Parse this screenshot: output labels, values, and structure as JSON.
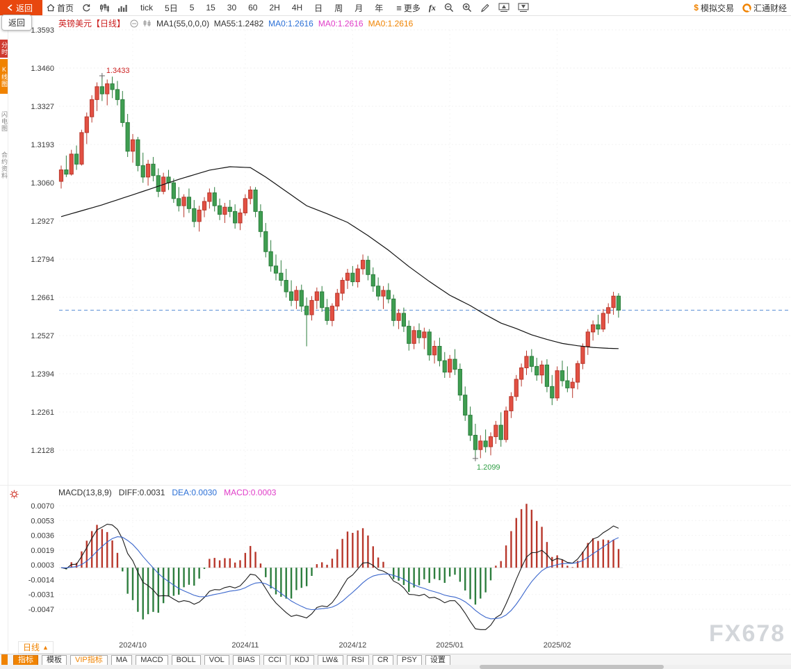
{
  "toolbar": {
    "back_label": "返回",
    "home_label": "首页",
    "periods": [
      "tick",
      "5日",
      "5",
      "15",
      "30",
      "60",
      "2H",
      "4H",
      "日",
      "周",
      "月",
      "年"
    ],
    "more_label": "更多",
    "fx_label": "fx",
    "sim_trading_prefix": "$",
    "sim_trading_label": "模拟交易",
    "brand_label": "汇通财经"
  },
  "back_tooltip": "返回",
  "rail": {
    "items": [
      "分时",
      "K线图",
      "闪电图",
      "合约资料"
    ]
  },
  "header": {
    "symbol": "英镑美元",
    "period_tag": "【日线】",
    "ma_label": "MA1(55,0,0,0)",
    "ma55": "MA55:1.2482",
    "ma_blue": "MA0:1.2616",
    "ma_magenta": "MA0:1.2616",
    "ma_orange": "MA0:1.2616"
  },
  "macd_header": {
    "title": "MACD(13,8,9)",
    "diff": "DIFF:0.0031",
    "dea": "DEA:0.0030",
    "macd": "MACD:0.0003"
  },
  "period_indicator": {
    "label": "日线",
    "arrow": "▲"
  },
  "bottom_tabs": [
    {
      "label": "指标",
      "state": "active"
    },
    {
      "label": "模板",
      "state": ""
    },
    {
      "label": "VIP指标",
      "state": "vip"
    },
    {
      "label": "MA",
      "state": ""
    },
    {
      "label": "MACD",
      "state": ""
    },
    {
      "label": "BOLL",
      "state": ""
    },
    {
      "label": "VOL",
      "state": ""
    },
    {
      "label": "BIAS",
      "state": ""
    },
    {
      "label": "CCI",
      "state": ""
    },
    {
      "label": "KDJ",
      "state": ""
    },
    {
      "label": "LW&",
      "state": ""
    },
    {
      "label": "RSI",
      "state": ""
    },
    {
      "label": "CR",
      "state": ""
    },
    {
      "label": "PSY",
      "state": ""
    },
    {
      "label": "设置",
      "state": ""
    }
  ],
  "watermark": "FX678",
  "colors": {
    "up": "#e25043",
    "up_stroke": "#b8372b",
    "down": "#3f9e51",
    "down_stroke": "#2c7d3d",
    "ma55_line": "#111111",
    "diff_line": "#1a1a1a",
    "dea_line": "#3a66cc",
    "dashed_price_line": "#5b8fd6",
    "accent": "#f08300",
    "high_label": "#cc2222",
    "low_label": "#2f9e44"
  },
  "chart_data": {
    "type": "candlestick+macd",
    "title": "英镑美元 日线 (GBP/USD daily)",
    "price_panel": {
      "y_tick_labels": [
        "1.3593",
        "1.3460",
        "1.3327",
        "1.3193",
        "1.3060",
        "1.2927",
        "1.2794",
        "1.2661",
        "1.2527",
        "1.2394",
        "1.2261",
        "1.2128"
      ],
      "y_range": [
        1.2128,
        1.3593
      ],
      "current_price": 1.2616,
      "high_annotation": {
        "index": 8,
        "price": 1.3433,
        "label": "1.3433"
      },
      "low_annotation": {
        "index": 81,
        "price": 1.2099,
        "label": "1.2099"
      },
      "ma55_anchors": [
        [
          0,
          1.2942
        ],
        [
          8,
          1.2983
        ],
        [
          15,
          1.3024
        ],
        [
          23,
          1.3072
        ],
        [
          29,
          1.3104
        ],
        [
          33,
          1.3116
        ],
        [
          37,
          1.3113
        ],
        [
          40,
          1.308
        ],
        [
          44,
          1.303
        ],
        [
          48,
          1.298
        ],
        [
          52,
          1.2952
        ],
        [
          56,
          1.2922
        ],
        [
          60,
          1.2876
        ],
        [
          64,
          1.2825
        ],
        [
          68,
          1.2768
        ],
        [
          72,
          1.2716
        ],
        [
          76,
          1.2668
        ],
        [
          80,
          1.2632
        ],
        [
          83,
          1.26
        ],
        [
          86,
          1.2571
        ],
        [
          89,
          1.2552
        ],
        [
          92,
          1.253
        ],
        [
          95,
          1.2514
        ],
        [
          98,
          1.25
        ],
        [
          101,
          1.2492
        ],
        [
          104,
          1.2486
        ],
        [
          107,
          1.2483
        ],
        [
          109,
          1.2482
        ]
      ],
      "candles": [
        [
          1.3065,
          1.312,
          1.304,
          1.3105
        ],
        [
          1.3105,
          1.3155,
          1.308,
          1.309
        ],
        [
          1.309,
          1.3175,
          1.3085,
          1.316
        ],
        [
          1.316,
          1.319,
          1.3105,
          1.3125
        ],
        [
          1.3125,
          1.3245,
          1.312,
          1.3235
        ],
        [
          1.3235,
          1.3305,
          1.3195,
          1.329
        ],
        [
          1.329,
          1.3365,
          1.327,
          1.335
        ],
        [
          1.335,
          1.341,
          1.331,
          1.3395
        ],
        [
          1.3395,
          1.3433,
          1.3345,
          1.337
        ],
        [
          1.337,
          1.342,
          1.333,
          1.3405
        ],
        [
          1.3405,
          1.343,
          1.3355,
          1.3385
        ],
        [
          1.3385,
          1.3415,
          1.333,
          1.335
        ],
        [
          1.335,
          1.338,
          1.3255,
          1.327
        ],
        [
          1.327,
          1.33,
          1.315,
          1.317
        ],
        [
          1.317,
          1.323,
          1.313,
          1.321
        ],
        [
          1.321,
          1.322,
          1.31,
          1.312
        ],
        [
          1.312,
          1.3165,
          1.306,
          1.308
        ],
        [
          1.308,
          1.314,
          1.305,
          1.3125
        ],
        [
          1.3125,
          1.315,
          1.3065,
          1.3085
        ],
        [
          1.3085,
          1.311,
          1.301,
          1.303
        ],
        [
          1.303,
          1.3095,
          1.302,
          1.308
        ],
        [
          1.308,
          1.3105,
          1.3035,
          1.306
        ],
        [
          1.306,
          1.3075,
          1.299,
          1.3005
        ],
        [
          1.3005,
          1.3045,
          1.296,
          1.298
        ],
        [
          1.298,
          1.302,
          1.294,
          1.301
        ],
        [
          1.301,
          1.304,
          1.2955,
          1.297
        ],
        [
          1.297,
          1.3,
          1.2905,
          1.2925
        ],
        [
          1.2925,
          1.298,
          1.289,
          1.2965
        ],
        [
          1.2965,
          1.301,
          1.294,
          1.2995
        ],
        [
          1.2995,
          1.304,
          1.297,
          1.3025
        ],
        [
          1.3025,
          1.3045,
          1.296,
          1.298
        ],
        [
          1.298,
          1.3005,
          1.293,
          1.295
        ],
        [
          1.295,
          1.299,
          1.292,
          1.2975
        ],
        [
          1.2975,
          1.3,
          1.294,
          1.296
        ],
        [
          1.296,
          1.2985,
          1.29,
          1.292
        ],
        [
          1.292,
          1.297,
          1.2895,
          1.2955
        ],
        [
          1.2955,
          1.302,
          1.2945,
          1.3005
        ],
        [
          1.3005,
          1.3048,
          1.2985,
          1.3035
        ],
        [
          1.3035,
          1.3045,
          1.294,
          1.296
        ],
        [
          1.296,
          1.2985,
          1.287,
          1.289
        ],
        [
          1.289,
          1.292,
          1.28,
          1.282
        ],
        [
          1.282,
          1.286,
          1.275,
          1.277
        ],
        [
          1.277,
          1.281,
          1.272,
          1.2745
        ],
        [
          1.2745,
          1.279,
          1.27,
          1.272
        ],
        [
          1.272,
          1.276,
          1.266,
          1.268
        ],
        [
          1.268,
          1.272,
          1.263,
          1.265
        ],
        [
          1.265,
          1.27,
          1.262,
          1.2685
        ],
        [
          1.2685,
          1.2705,
          1.261,
          1.263
        ],
        [
          1.263,
          1.266,
          1.249,
          1.26
        ],
        [
          1.26,
          1.2665,
          1.258,
          1.265
        ],
        [
          1.265,
          1.2695,
          1.262,
          1.268
        ],
        [
          1.268,
          1.27,
          1.261,
          1.2625
        ],
        [
          1.2625,
          1.2655,
          1.2565,
          1.258
        ],
        [
          1.258,
          1.264,
          1.256,
          1.263
        ],
        [
          1.263,
          1.269,
          1.2615,
          1.2675
        ],
        [
          1.2675,
          1.273,
          1.265,
          1.272
        ],
        [
          1.272,
          1.276,
          1.269,
          1.2745
        ],
        [
          1.2745,
          1.277,
          1.27,
          1.2715
        ],
        [
          1.2715,
          1.2775,
          1.2695,
          1.276
        ],
        [
          1.276,
          1.281,
          1.274,
          1.279
        ],
        [
          1.279,
          1.2805,
          1.272,
          1.274
        ],
        [
          1.274,
          1.2765,
          1.268,
          1.27
        ],
        [
          1.27,
          1.273,
          1.265,
          1.2665
        ],
        [
          1.2665,
          1.27,
          1.262,
          1.2685
        ],
        [
          1.2685,
          1.271,
          1.264,
          1.2655
        ],
        [
          1.2655,
          1.267,
          1.256,
          1.258
        ],
        [
          1.258,
          1.262,
          1.255,
          1.2605
        ],
        [
          1.2605,
          1.2625,
          1.254,
          1.256
        ],
        [
          1.256,
          1.258,
          1.2475,
          1.25
        ],
        [
          1.25,
          1.256,
          1.248,
          1.2545
        ],
        [
          1.2545,
          1.257,
          1.25,
          1.252
        ],
        [
          1.252,
          1.2555,
          1.248,
          1.254
        ],
        [
          1.254,
          1.255,
          1.244,
          1.246
        ],
        [
          1.246,
          1.251,
          1.243,
          1.249
        ],
        [
          1.249,
          1.252,
          1.242,
          1.244
        ],
        [
          1.244,
          1.247,
          1.238,
          1.24
        ],
        [
          1.24,
          1.246,
          1.238,
          1.2445
        ],
        [
          1.2445,
          1.248,
          1.239,
          1.241
        ],
        [
          1.241,
          1.243,
          1.23,
          1.232
        ],
        [
          1.232,
          1.235,
          1.223,
          1.225
        ],
        [
          1.225,
          1.228,
          1.216,
          1.218
        ],
        [
          1.218,
          1.222,
          1.2099,
          1.213
        ],
        [
          1.213,
          1.218,
          1.21,
          1.216
        ],
        [
          1.216,
          1.22,
          1.212,
          1.214
        ],
        [
          1.214,
          1.219,
          1.211,
          1.2175
        ],
        [
          1.2175,
          1.223,
          1.215,
          1.2215
        ],
        [
          1.2215,
          1.226,
          1.214,
          1.2165
        ],
        [
          1.2165,
          1.228,
          1.2155,
          1.2265
        ],
        [
          1.2265,
          1.233,
          1.224,
          1.2315
        ],
        [
          1.2315,
          1.239,
          1.23,
          1.2375
        ],
        [
          1.2375,
          1.243,
          1.235,
          1.2415
        ],
        [
          1.2415,
          1.2475,
          1.239,
          1.2455
        ],
        [
          1.2455,
          1.248,
          1.24,
          1.242
        ],
        [
          1.242,
          1.245,
          1.237,
          1.239
        ],
        [
          1.239,
          1.244,
          1.236,
          1.2425
        ],
        [
          1.2425,
          1.2445,
          1.233,
          1.235
        ],
        [
          1.235,
          1.239,
          1.2285,
          1.231
        ],
        [
          1.231,
          1.242,
          1.23,
          1.2405
        ],
        [
          1.2405,
          1.244,
          1.235,
          1.237
        ],
        [
          1.237,
          1.242,
          1.233,
          1.2345
        ],
        [
          1.2345,
          1.238,
          1.231,
          1.2365
        ],
        [
          1.2365,
          1.244,
          1.234,
          1.243
        ],
        [
          1.243,
          1.25,
          1.241,
          1.249
        ],
        [
          1.249,
          1.255,
          1.246,
          1.254
        ],
        [
          1.254,
          1.258,
          1.251,
          1.2565
        ],
        [
          1.2565,
          1.26,
          1.253,
          1.255
        ],
        [
          1.255,
          1.262,
          1.254,
          1.2605
        ],
        [
          1.2605,
          1.264,
          1.257,
          1.2625
        ],
        [
          1.2625,
          1.268,
          1.26,
          1.2665
        ],
        [
          1.2665,
          1.2675,
          1.259,
          1.2616
        ]
      ]
    },
    "macd_panel": {
      "params": "MACD(13,8,9)",
      "y_tick_labels": [
        "0.0070",
        "0.0053",
        "0.0036",
        "0.0019",
        "0.0003",
        "-0.0014",
        "-0.0031",
        "-0.0047"
      ],
      "last_values": {
        "diff": 0.0031,
        "dea": 0.003,
        "macd": 0.0003
      },
      "note": "diff/dea/histogram series derived from candle closes: DIFF=EMA8-EMA13, DEA=EMA9(DIFF), MACD=(DIFF-DEA)*2"
    },
    "x_axis": {
      "month_labels": [
        {
          "label": "2024/10",
          "index": 14
        },
        {
          "label": "2024/11",
          "index": 36
        },
        {
          "label": "2024/12",
          "index": 57
        },
        {
          "label": "2025/01",
          "index": 76
        },
        {
          "label": "2025/02",
          "index": 97
        }
      ]
    }
  }
}
